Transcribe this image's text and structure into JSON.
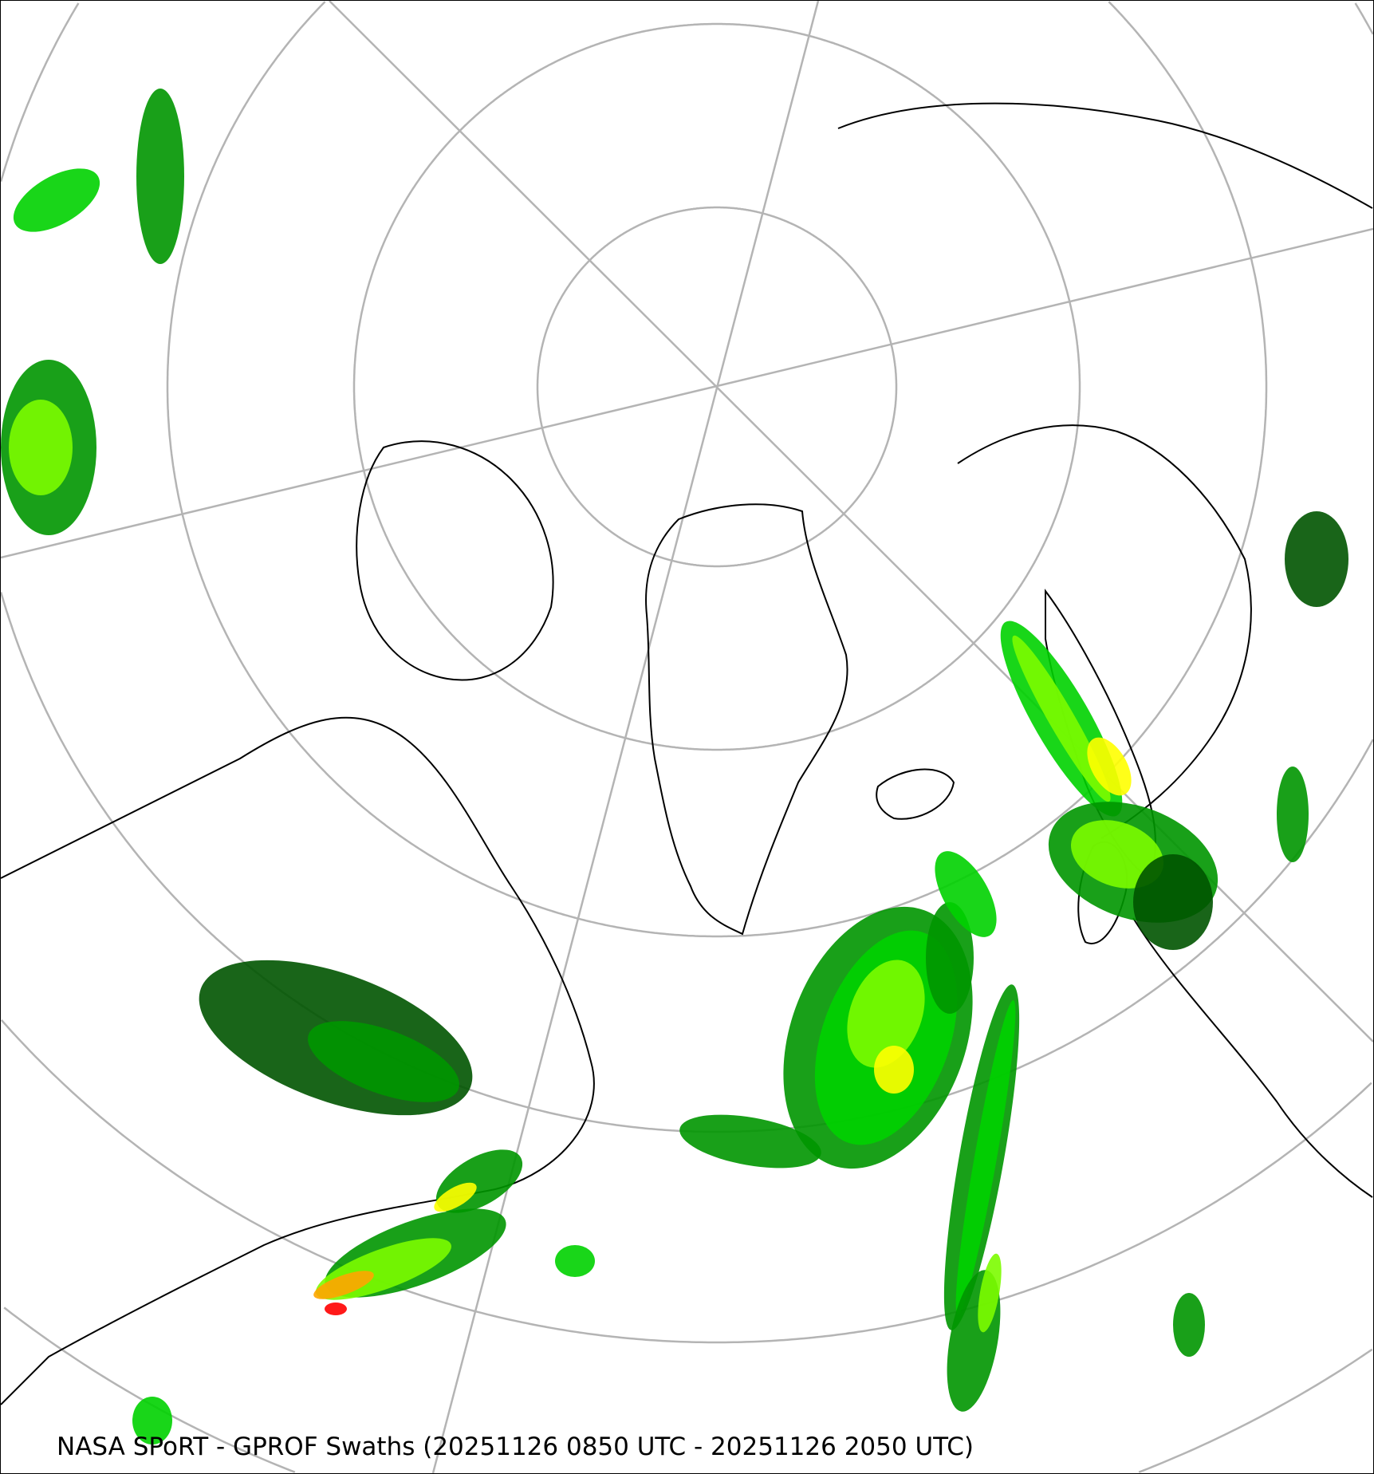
{
  "caption": "NASA SPoRT - GPROF Swaths (20251126 0850 UTC - 20251126 2050 UTC)",
  "map": {
    "projection": "north-polar-stereographic",
    "graticule_color": "#b4b4b4",
    "coastline_color": "#000000",
    "precip_colors": [
      "#005400",
      "#009600",
      "#00d200",
      "#7cfc00",
      "#ffff00",
      "#ffa500",
      "#ff0000"
    ]
  }
}
